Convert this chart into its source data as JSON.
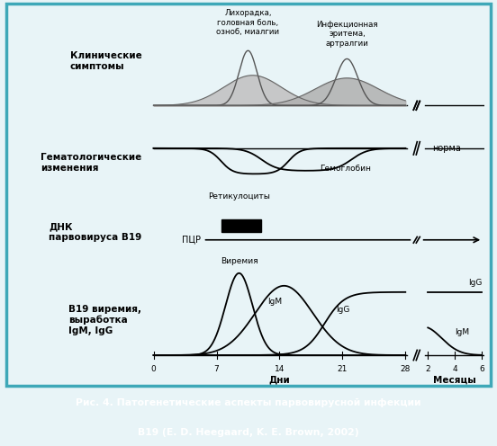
{
  "caption_line1": "Рис. 4. ",
  "caption_line1_bold": "Патогенетические аспекты парвовирусной инфекции",
  "caption_line2_bold": "B19 (E. D. Heegaard, K. E. Brown, 2002)",
  "caption_bg": "#3ea8b8",
  "caption_text_color": "#ffffff",
  "bg_color": "#e8f4f7",
  "border_color": "#3ea8b8",
  "row_labels": [
    "Клинические\nсимптомы",
    "Гематологические\nизменения",
    "ДНК\nпарвовируса B19",
    "B19 виремия,\nвыработка\nIgM, IgG"
  ],
  "label_fever": "Лихорадка,\nголовная боль,\nозноб, миалгии",
  "label_erythema": "Инфекционная\nэритема,\nартралгии",
  "label_reticulocytes": "Ретикулоциты",
  "label_hemoglobin": "Гемоглобин",
  "label_norma": "норма",
  "label_pcr": "ПЦР",
  "label_viremia": "Виремия",
  "label_igm": "IgM",
  "label_igg": "IgG",
  "label_igm2": "IgM",
  "xlabel_days": "Дни",
  "xlabel_months": "Месяцы"
}
